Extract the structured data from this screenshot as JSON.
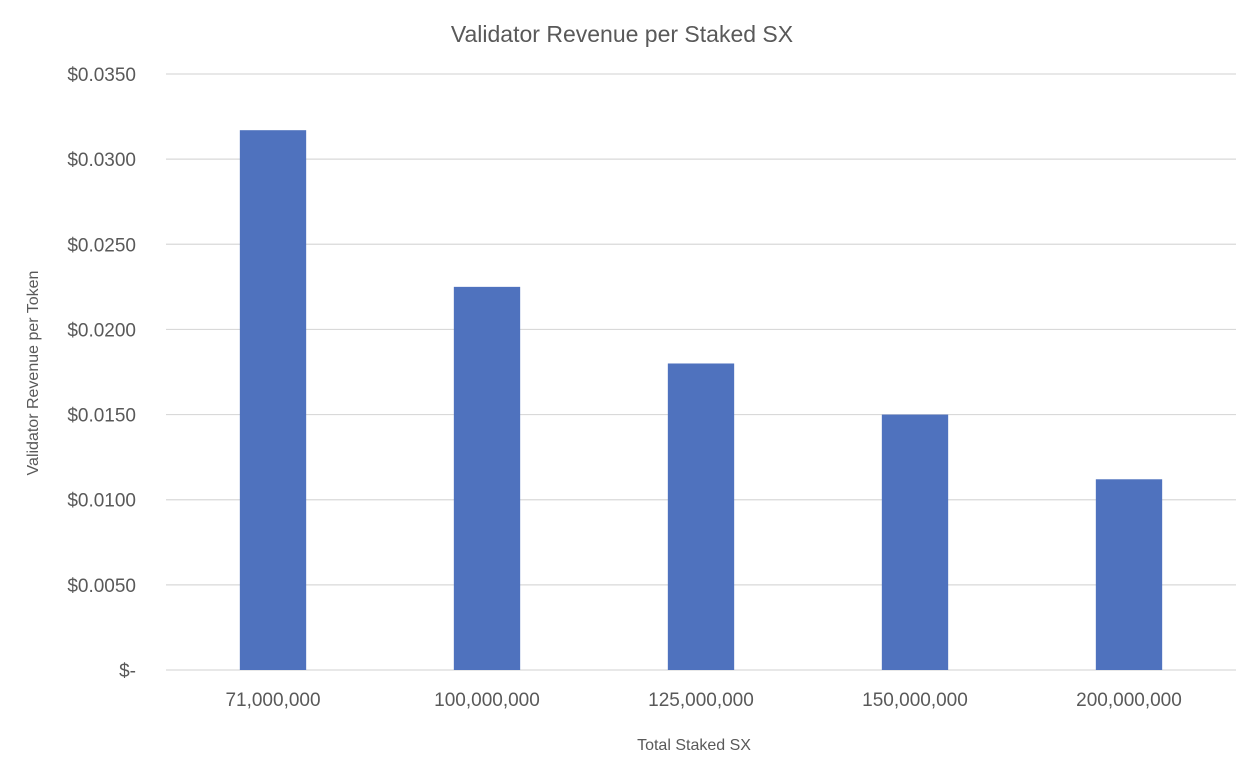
{
  "chart_data": {
    "type": "bar",
    "title": "Validator Revenue per Staked SX",
    "xlabel": "Total Staked SX",
    "ylabel": "Validator Revenue per Token",
    "categories": [
      "71,000,000",
      "100,000,000",
      "125,000,000",
      "150,000,000",
      "200,000,000"
    ],
    "values": [
      0.0317,
      0.0225,
      0.018,
      0.015,
      0.0112
    ],
    "ylim": [
      0,
      0.035
    ],
    "yticks": [
      0,
      0.005,
      0.01,
      0.015,
      0.02,
      0.025,
      0.03,
      0.035
    ],
    "ytick_labels": [
      "$-",
      "$0.0050",
      "$0.0100",
      "$0.0150",
      "$0.0200",
      "$0.0250",
      "$0.0300",
      "$0.0350"
    ],
    "grid": true,
    "legend": "none",
    "colors": {
      "bar": "#4f72be",
      "grid": "#d9d9d9",
      "text": "#595959"
    }
  }
}
